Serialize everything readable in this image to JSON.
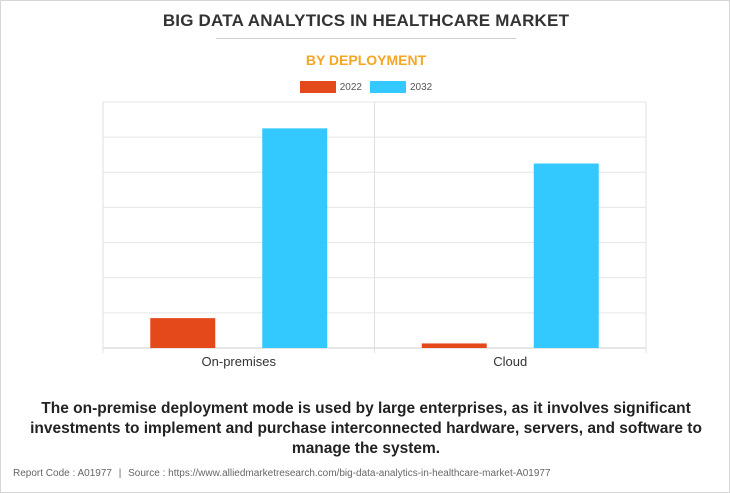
{
  "title": "BIG DATA ANALYTICS IN HEALTHCARE MARKET",
  "subtitle": "BY DEPLOYMENT",
  "caption": "The on-premise deployment mode is used by large enterprises, as it involves significant investments to implement and purchase interconnected hardware, servers, and software to manage the system.",
  "footer": {
    "report_code_label": "Report Code : A01977",
    "separator": "|",
    "source_label": "Source : https://www.alliedmarketresearch.com/big-data-analytics-in-healthcare-market-A01977"
  },
  "colors": {
    "title": "#333333",
    "subtitle": "#f5a623",
    "series_2022": "#e4491c",
    "series_2032": "#33c9ff",
    "grid": "#e6e6e6"
  },
  "chart_data": {
    "type": "bar",
    "categories": [
      "On-premises",
      "Cloud"
    ],
    "series": [
      {
        "name": "2022",
        "values": [
          0.85,
          0.13
        ],
        "color": "#e4491c"
      },
      {
        "name": "2032",
        "values": [
          6.25,
          5.25
        ],
        "color": "#33c9ff"
      }
    ],
    "ylim": [
      0,
      7
    ],
    "grid": true,
    "y_tick_labels_shown": false,
    "legend_position": "top-center",
    "xlabel": "",
    "ylabel": ""
  }
}
